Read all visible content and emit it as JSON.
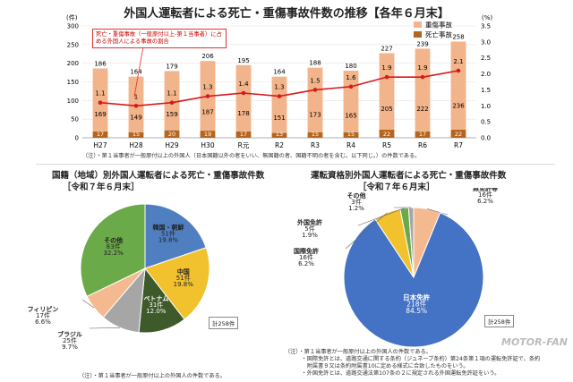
{
  "title": "外国人運転者による死亡・重傷事故件数の推移【各年６月末】",
  "bar_chart": {
    "y_left_unit": "(件)",
    "y_right_unit": "(%)",
    "y_left_ticks": [
      "0",
      "50",
      "100",
      "150",
      "200",
      "250",
      "300"
    ],
    "y_right_ticks": [
      "0.0",
      "0.5",
      "1.0",
      "1.5",
      "2.0",
      "2.5",
      "3.0",
      "3.5"
    ],
    "legend_serious": "重傷事故",
    "legend_fatal": "死亡事故",
    "callout": "死亡・重傷事故（一般原付以上-第１当事者）に占める外国人による事故の割合",
    "note": "（注）・第１当事者が一般原付以上の外国人（日本国籍以外の者をいい、無国籍の者、国籍不明の者を含む。以下同じ。）の件数である。"
  },
  "left_panel": {
    "title": "国籍（地域）別外国人運転者による死亡・重傷事故件数",
    "subtitle": "［令和７年６月末］",
    "total": "計258件",
    "note": "（注）・第１当事者が一般原付以上の外国人の件数である。"
  },
  "right_panel": {
    "title": "運転資格別外国人運転者による死亡・重傷事故件数",
    "subtitle": "［令和７年６月末］",
    "total": "計258件",
    "note_lines": [
      "（注）・第１当事者が一般原付以上の外国人の件数である。",
      "　　　・国際免許とは、道路交通に関する条約（ジュネーブ条約）第24条第１項の運転免許証で、条約",
      "　　　　附属書９又は条約附属書10に定める様式に合致したものをいう。",
      "　　　・外国免許とは、道路交通法第107条の２に規定される外国運転免許証をいう。"
    ]
  },
  "watermark": "MOTOR-FAN",
  "chart_data": [
    {
      "type": "bar",
      "title": "外国人運転者による死亡・重傷事故件数の推移【各年６月末】",
      "categories": [
        "H27",
        "H28",
        "H29",
        "H30",
        "R元",
        "R2",
        "R3",
        "R4",
        "R5",
        "R6",
        "R7"
      ],
      "series": [
        {
          "name": "死亡事故",
          "values": [
            17,
            15,
            20,
            19,
            17,
            13,
            15,
            15,
            22,
            17,
            22
          ]
        },
        {
          "name": "重傷事故",
          "values": [
            169,
            149,
            159,
            187,
            178,
            151,
            173,
            165,
            205,
            222,
            236
          ]
        }
      ],
      "totals": [
        186,
        164,
        179,
        206,
        195,
        164,
        188,
        180,
        227,
        239,
        258
      ],
      "line": {
        "name": "割合",
        "unit": "%",
        "values": [
          1.1,
          1.0,
          1.1,
          1.3,
          1.4,
          1.3,
          1.5,
          1.6,
          1.9,
          1.9,
          2.1
        ]
      },
      "ylim": [
        0,
        300
      ],
      "y2lim": [
        0,
        3.5
      ],
      "colors": {
        "serious": "#f2b48a",
        "fatal": "#b5651d",
        "line": "#d7191c"
      },
      "legend": "top-right"
    },
    {
      "type": "pie",
      "title": "国籍（地域）別外国人運転者による死亡・重傷事故件数",
      "slices": [
        {
          "label": "韓国・朝鮮",
          "count": "51件",
          "pct": "19.8%",
          "value": 51,
          "color": "#4f7fc1"
        },
        {
          "label": "中国",
          "count": "51件",
          "pct": "19.8%",
          "value": 51,
          "color": "#f2c12e"
        },
        {
          "label": "ベトナム",
          "count": "31件",
          "pct": "12.0%",
          "value": 31,
          "color": "#3e5a2a"
        },
        {
          "label": "ブラジル",
          "count": "25件",
          "pct": "9.7%",
          "value": 25,
          "color": "#a6a6a6"
        },
        {
          "label": "フィリピン",
          "count": "17件",
          "pct": "6.6%",
          "value": 17,
          "color": "#f4b98f"
        },
        {
          "label": "その他",
          "count": "83件",
          "pct": "32.2%",
          "value": 83,
          "color": "#6aaa48"
        }
      ]
    },
    {
      "type": "pie",
      "title": "運転資格別外国人運転者による死亡・重傷事故件数",
      "slices": [
        {
          "label": "無免許等",
          "count": "16件",
          "pct": "6.2%",
          "value": 16,
          "color": "#f4b98f"
        },
        {
          "label": "日本免許",
          "count": "218件",
          "pct": "84.5%",
          "value": 218,
          "color": "#4472c4"
        },
        {
          "label": "国際免許",
          "count": "16件",
          "pct": "6.2%",
          "value": 16,
          "color": "#f2c12e"
        },
        {
          "label": "外国免許",
          "count": "5件",
          "pct": "1.9%",
          "value": 5,
          "color": "#6aaa48"
        },
        {
          "label": "その他",
          "count": "3件",
          "pct": "1.2%",
          "value": 3,
          "color": "#a6a6a6"
        }
      ]
    }
  ]
}
